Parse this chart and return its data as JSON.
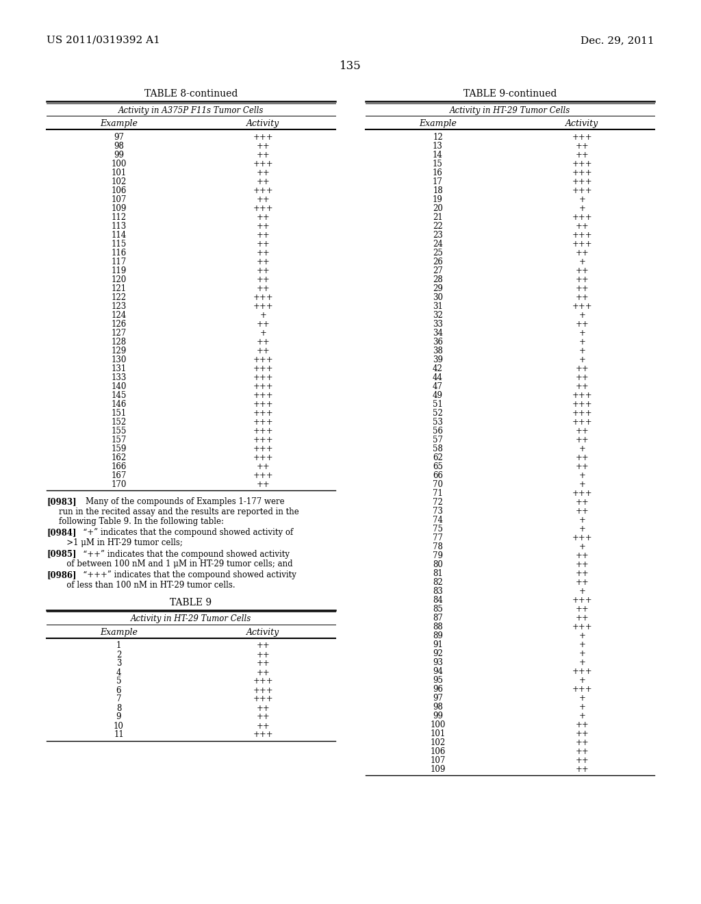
{
  "patent_num": "US 2011/0319392 A1",
  "date": "Dec. 29, 2011",
  "page_num": "135",
  "bg_color": "#ffffff",
  "table8_title": "TABLE 8-continued",
  "table8_subtitle": "Activity in A375P F11s Tumor Cells",
  "table8_col1": "Example",
  "table8_col2": "Activity",
  "table8_data": [
    [
      "97",
      "+++"
    ],
    [
      "98",
      "++"
    ],
    [
      "99",
      "++"
    ],
    [
      "100",
      "+++"
    ],
    [
      "101",
      "++"
    ],
    [
      "102",
      "++"
    ],
    [
      "106",
      "+++"
    ],
    [
      "107",
      "++"
    ],
    [
      "109",
      "+++"
    ],
    [
      "112",
      "++"
    ],
    [
      "113",
      "++"
    ],
    [
      "114",
      "++"
    ],
    [
      "115",
      "++"
    ],
    [
      "116",
      "++"
    ],
    [
      "117",
      "++"
    ],
    [
      "119",
      "++"
    ],
    [
      "120",
      "++"
    ],
    [
      "121",
      "++"
    ],
    [
      "122",
      "+++"
    ],
    [
      "123",
      "+++"
    ],
    [
      "124",
      "+"
    ],
    [
      "126",
      "++"
    ],
    [
      "127",
      "+"
    ],
    [
      "128",
      "++"
    ],
    [
      "129",
      "++"
    ],
    [
      "130",
      "+++"
    ],
    [
      "131",
      "+++"
    ],
    [
      "133",
      "+++"
    ],
    [
      "140",
      "+++"
    ],
    [
      "145",
      "+++"
    ],
    [
      "146",
      "+++"
    ],
    [
      "151",
      "+++"
    ],
    [
      "152",
      "+++"
    ],
    [
      "155",
      "+++"
    ],
    [
      "157",
      "+++"
    ],
    [
      "159",
      "+++"
    ],
    [
      "162",
      "+++"
    ],
    [
      "166",
      "++"
    ],
    [
      "167",
      "+++"
    ],
    [
      "170",
      "++"
    ]
  ],
  "table9_title": "TABLE 9",
  "table9_subtitle": "Activity in HT-29 Tumor Cells",
  "table9_col1": "Example",
  "table9_col2": "Activity",
  "table9_data": [
    [
      "1",
      "++"
    ],
    [
      "2",
      "++"
    ],
    [
      "3",
      "++"
    ],
    [
      "4",
      "++"
    ],
    [
      "5",
      "+++"
    ],
    [
      "6",
      "+++"
    ],
    [
      "7",
      "+++"
    ],
    [
      "8",
      "++"
    ],
    [
      "9",
      "++"
    ],
    [
      "10",
      "++"
    ],
    [
      "11",
      "+++"
    ]
  ],
  "table9cont_title": "TABLE 9-continued",
  "table9cont_subtitle": "Activity in HT-29 Tumor Cells",
  "table9cont_col1": "Example",
  "table9cont_col2": "Activity",
  "table9cont_data": [
    [
      "12",
      "+++"
    ],
    [
      "13",
      "++"
    ],
    [
      "14",
      "++"
    ],
    [
      "15",
      "+++"
    ],
    [
      "16",
      "+++"
    ],
    [
      "17",
      "+++"
    ],
    [
      "18",
      "+++"
    ],
    [
      "19",
      "+"
    ],
    [
      "20",
      "+"
    ],
    [
      "21",
      "+++"
    ],
    [
      "22",
      "++"
    ],
    [
      "23",
      "+++"
    ],
    [
      "24",
      "+++"
    ],
    [
      "25",
      "++"
    ],
    [
      "26",
      "+"
    ],
    [
      "27",
      "++"
    ],
    [
      "28",
      "++"
    ],
    [
      "29",
      "++"
    ],
    [
      "30",
      "++"
    ],
    [
      "31",
      "+++"
    ],
    [
      "32",
      "+"
    ],
    [
      "33",
      "++"
    ],
    [
      "34",
      "+"
    ],
    [
      "36",
      "+"
    ],
    [
      "38",
      "+"
    ],
    [
      "39",
      "+"
    ],
    [
      "42",
      "++"
    ],
    [
      "44",
      "++"
    ],
    [
      "47",
      "++"
    ],
    [
      "49",
      "+++"
    ],
    [
      "51",
      "+++"
    ],
    [
      "52",
      "+++"
    ],
    [
      "53",
      "+++"
    ],
    [
      "56",
      "++"
    ],
    [
      "57",
      "++"
    ],
    [
      "58",
      "+"
    ],
    [
      "62",
      "++"
    ],
    [
      "65",
      "++"
    ],
    [
      "66",
      "+"
    ],
    [
      "70",
      "+"
    ],
    [
      "71",
      "+++"
    ],
    [
      "72",
      "++"
    ],
    [
      "73",
      "++"
    ],
    [
      "74",
      "+"
    ],
    [
      "75",
      "+"
    ],
    [
      "77",
      "+++"
    ],
    [
      "78",
      "+"
    ],
    [
      "79",
      "++"
    ],
    [
      "80",
      "++"
    ],
    [
      "81",
      "++"
    ],
    [
      "82",
      "++"
    ],
    [
      "83",
      "+"
    ],
    [
      "84",
      "+++"
    ],
    [
      "85",
      "++"
    ],
    [
      "87",
      "++"
    ],
    [
      "88",
      "+++"
    ],
    [
      "89",
      "+"
    ],
    [
      "91",
      "+"
    ],
    [
      "92",
      "+"
    ],
    [
      "93",
      "+"
    ],
    [
      "94",
      "+++"
    ],
    [
      "95",
      "+"
    ],
    [
      "96",
      "+++"
    ],
    [
      "97",
      "+"
    ],
    [
      "98",
      "+"
    ],
    [
      "99",
      "+"
    ],
    [
      "100",
      "++"
    ],
    [
      "101",
      "++"
    ],
    [
      "102",
      "++"
    ],
    [
      "106",
      "++"
    ],
    [
      "107",
      "++"
    ],
    [
      "109",
      "++"
    ]
  ],
  "paragraphs": [
    {
      "tag": "[0983]",
      "bold": true,
      "lines": [
        "    Many of the compounds of Examples 1-177 were",
        "run in the recited assay and the results are reported in the",
        "following Table 9. In the following table:"
      ]
    },
    {
      "tag": "[0984]",
      "bold": true,
      "lines": [
        "   “+” indicates that the compound showed activity of",
        "   >1 μM in HT-29 tumor cells;"
      ]
    },
    {
      "tag": "[0985]",
      "bold": true,
      "lines": [
        "   “++” indicates that the compound showed activity",
        "   of between 100 nM and 1 μM in HT-29 tumor cells; and"
      ]
    },
    {
      "tag": "[0986]",
      "bold": true,
      "lines": [
        "   “+++” indicates that the compound showed activity",
        "   of less than 100 nM in HT-29 tumor cells."
      ]
    }
  ]
}
